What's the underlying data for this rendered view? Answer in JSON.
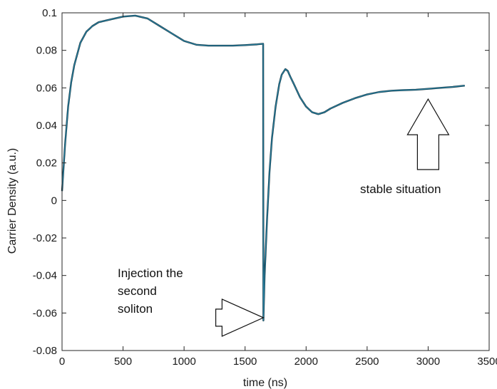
{
  "chart_data": {
    "type": "line",
    "title": "",
    "xlabel": "time (ns)",
    "ylabel": "Carrier Density (a.u.)",
    "xlim": [
      0,
      3500
    ],
    "ylim": [
      -0.08,
      0.1
    ],
    "xticks": [
      0,
      500,
      1000,
      1500,
      2000,
      2500,
      3000,
      3500
    ],
    "yticks": [
      -0.08,
      -0.06,
      -0.04,
      -0.02,
      0,
      0.02,
      0.04,
      0.06,
      0.08,
      0.1
    ],
    "xtick_labels": [
      "0",
      "500",
      "1000",
      "1500",
      "2000",
      "2500",
      "3000",
      "3500"
    ],
    "ytick_labels": [
      "-0.08",
      "-0.06",
      "-0.04",
      "-0.02",
      "0",
      "0.02",
      "0.04",
      "0.06",
      "0.08",
      "0.1"
    ],
    "grid": false,
    "legend": "none",
    "series": [
      {
        "color": "#2a7f9e",
        "x": [
          0,
          25,
          50,
          75,
          100,
          150,
          200,
          250,
          300,
          400,
          500,
          600,
          700,
          800,
          900,
          1000,
          1100,
          1200,
          1300,
          1400,
          1500,
          1600,
          1648,
          1650,
          1660,
          1680,
          1700,
          1720,
          1750,
          1780,
          1800,
          1830,
          1850,
          1870,
          1900,
          1950,
          2000,
          2050,
          2100,
          2150,
          2200,
          2300,
          2400,
          2500,
          2600,
          2700,
          2800,
          2900,
          3000,
          3100,
          3200,
          3300
        ],
        "y": [
          0.005,
          0.03,
          0.05,
          0.063,
          0.072,
          0.084,
          0.09,
          0.093,
          0.095,
          0.0965,
          0.098,
          0.0985,
          0.097,
          0.093,
          0.089,
          0.085,
          0.083,
          0.0825,
          0.0825,
          0.0825,
          0.0828,
          0.0832,
          0.0835,
          -0.064,
          -0.04,
          -0.01,
          0.015,
          0.033,
          0.05,
          0.062,
          0.067,
          0.07,
          0.069,
          0.066,
          0.062,
          0.055,
          0.05,
          0.047,
          0.046,
          0.047,
          0.049,
          0.052,
          0.0545,
          0.0565,
          0.0578,
          0.0585,
          0.0588,
          0.059,
          0.0595,
          0.06,
          0.0605,
          0.0612
        ]
      }
    ],
    "annotations": [
      {
        "lines": [
          "Injection the",
          "second",
          "soliton"
        ],
        "arrow": {
          "direction": "right",
          "x_from": 1260,
          "x_to": 1650,
          "y": -0.0625
        }
      },
      {
        "lines": [
          "stable situation"
        ],
        "arrow": {
          "direction": "up",
          "x": 3000,
          "y_from": 0.04,
          "y_to": 0.054
        }
      }
    ]
  }
}
